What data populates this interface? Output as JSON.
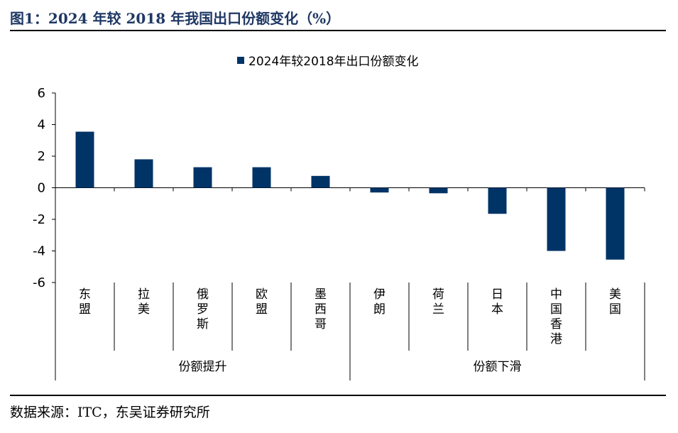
{
  "header": {
    "title": "图1：2024 年较 2018 年我国出口份额变化（%）"
  },
  "footer": {
    "source": "数据来源：ITC，东吴证券研究所"
  },
  "chart_data": {
    "type": "bar",
    "title": "",
    "xlabel": "",
    "ylabel": "",
    "legend": {
      "position": "top-center",
      "entries": [
        "2024年较2018年出口份额变化"
      ]
    },
    "series": [
      {
        "name": "2024年较2018年出口份额变化",
        "color": "#003366",
        "values": [
          3.55,
          1.8,
          1.3,
          1.3,
          0.75,
          -0.3,
          -0.35,
          -1.65,
          -4.0,
          -4.55
        ]
      }
    ],
    "categories": [
      "东盟",
      "拉美",
      "俄罗斯",
      "欧盟",
      "墨西哥",
      "伊朗",
      "荷兰",
      "日本",
      "中国香港",
      "美国"
    ],
    "groups": [
      {
        "label": "份额提升",
        "start": 0,
        "end": 4
      },
      {
        "label": "份额下滑",
        "start": 5,
        "end": 9
      }
    ],
    "ylim": [
      -6,
      6
    ],
    "yticks": [
      6,
      4,
      2,
      0,
      -2,
      -4,
      -6
    ],
    "grid": false
  }
}
